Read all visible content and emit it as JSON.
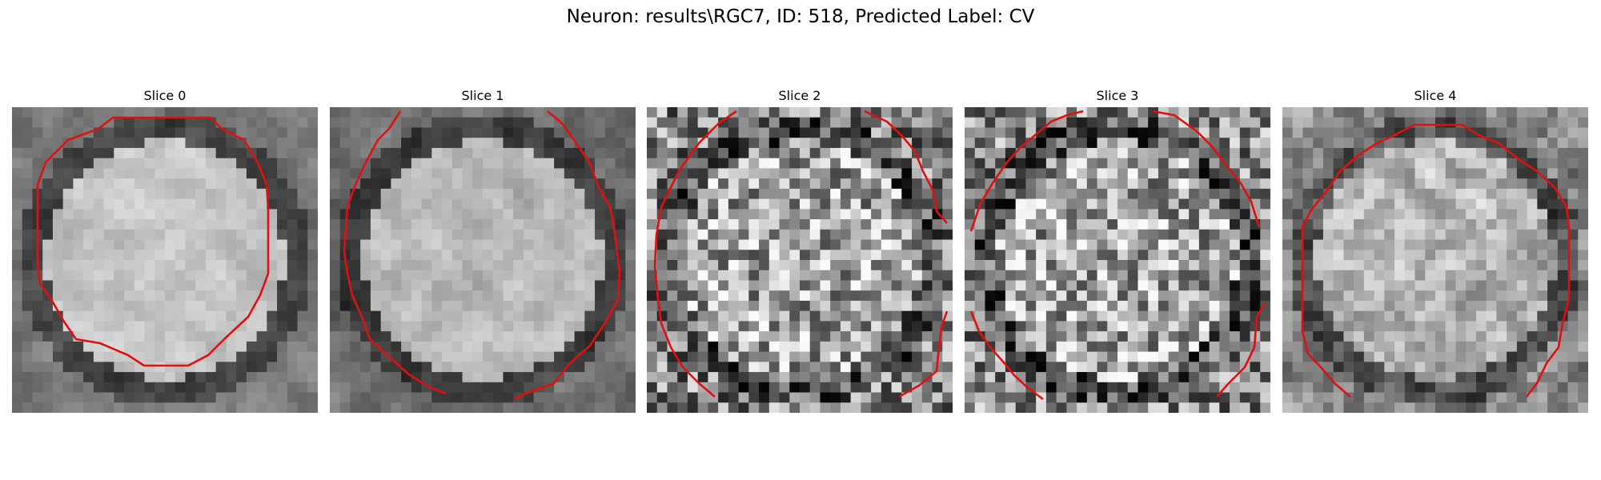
{
  "figure": {
    "title": "Neuron: results\\RGC7, ID: 518, Predicted Label: CV",
    "outline_color": "#e01010",
    "grid_size": 30
  },
  "panels": [
    {
      "label": "Slice 0"
    },
    {
      "label": "Slice 1"
    },
    {
      "label": "Slice 2"
    },
    {
      "label": "Slice 3"
    },
    {
      "label": "Slice 4"
    }
  ]
}
